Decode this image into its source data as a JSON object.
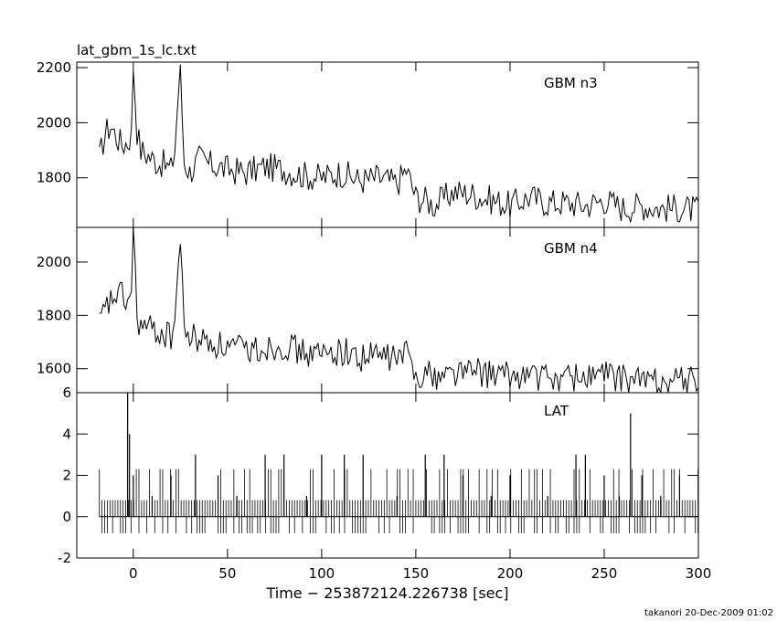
{
  "file_title": "lat_gbm_1s_lc.txt",
  "footer": "takanori 20-Dec-2009 01:02",
  "chart_data": [
    {
      "type": "line",
      "title": "GBM n3",
      "xlabel": "Time − 253872124.226738 [sec]",
      "ylabel": "",
      "xlim": [
        -30,
        300
      ],
      "ylim": [
        1620,
        2220
      ],
      "yticks": [
        1800,
        2000,
        2200
      ],
      "xticks": [
        0,
        50,
        100,
        150,
        200,
        250,
        300
      ],
      "series": [
        {
          "x": [
            -18,
            -15,
            -12,
            -9,
            -6,
            -3,
            -1,
            0,
            2,
            4,
            8,
            12,
            16,
            20,
            22,
            24,
            25,
            27,
            30,
            35,
            40,
            50,
            60,
            70,
            80,
            90,
            100,
            110,
            120,
            130,
            140,
            145,
            150,
            155,
            160,
            170,
            180,
            190,
            200,
            210,
            220,
            230,
            240,
            250,
            260,
            270,
            280,
            290,
            300
          ],
          "y": [
            1870,
            1960,
            1990,
            1950,
            1920,
            1930,
            1960,
            2210,
            1970,
            1900,
            1880,
            1860,
            1850,
            1830,
            1900,
            2120,
            2180,
            1860,
            1820,
            1870,
            1850,
            1830,
            1820,
            1840,
            1830,
            1810,
            1800,
            1820,
            1790,
            1800,
            1780,
            1830,
            1730,
            1720,
            1700,
            1750,
            1740,
            1720,
            1700,
            1730,
            1710,
            1710,
            1700,
            1720,
            1690,
            1700,
            1690,
            1690,
            1680
          ]
        }
      ]
    },
    {
      "type": "line",
      "title": "GBM n4",
      "xlabel": "Time − 253872124.226738 [sec]",
      "ylabel": "",
      "xlim": [
        -30,
        300
      ],
      "ylim": [
        1510,
        2130
      ],
      "yticks": [
        1600,
        1800,
        2000
      ],
      "xticks": [
        0,
        50,
        100,
        150,
        200,
        250,
        300
      ],
      "series": [
        {
          "x": [
            -18,
            -15,
            -12,
            -9,
            -6,
            -3,
            -1,
            0,
            2,
            4,
            8,
            12,
            16,
            20,
            22,
            24,
            25,
            27,
            30,
            35,
            40,
            50,
            60,
            70,
            80,
            90,
            100,
            110,
            120,
            130,
            140,
            145,
            150,
            155,
            160,
            170,
            180,
            190,
            200,
            210,
            220,
            230,
            240,
            250,
            260,
            270,
            280,
            290,
            300
          ],
          "y": [
            1760,
            1820,
            1850,
            1880,
            1870,
            1850,
            1880,
            2130,
            1790,
            1760,
            1750,
            1740,
            1730,
            1720,
            1780,
            2000,
            2070,
            1750,
            1720,
            1710,
            1700,
            1680,
            1670,
            1680,
            1690,
            1660,
            1650,
            1670,
            1640,
            1650,
            1640,
            1660,
            1580,
            1590,
            1570,
            1590,
            1590,
            1580,
            1570,
            1580,
            1560,
            1570,
            1570,
            1580,
            1560,
            1560,
            1550,
            1560,
            1550
          ]
        }
      ]
    },
    {
      "type": "line",
      "title": "LAT",
      "xlabel": "Time − 253872124.226738 [sec]",
      "ylabel": "",
      "xlim": [
        -30,
        300
      ],
      "ylim": [
        -2,
        6
      ],
      "yticks": [
        -2,
        0,
        2,
        4,
        6
      ],
      "xticks": [
        0,
        50,
        100,
        150,
        200,
        250,
        300
      ],
      "series": [
        {
          "x": [
            -3,
            -2,
            0,
            10,
            20,
            33,
            45,
            55,
            70,
            80,
            92,
            100,
            112,
            122,
            140,
            155,
            165,
            175,
            190,
            200,
            220,
            235,
            240,
            250,
            258,
            264,
            270,
            280,
            290
          ],
          "y": [
            6,
            4,
            2,
            1,
            2,
            3,
            2,
            1,
            3,
            3,
            1,
            3,
            3,
            3,
            1,
            3,
            3,
            2,
            1,
            2,
            1,
            3,
            3,
            2,
            1,
            5,
            2,
            1,
            2
          ]
        }
      ]
    }
  ],
  "x_tick_labels": [
    "0",
    "50",
    "100",
    "150",
    "200",
    "250",
    "300"
  ]
}
